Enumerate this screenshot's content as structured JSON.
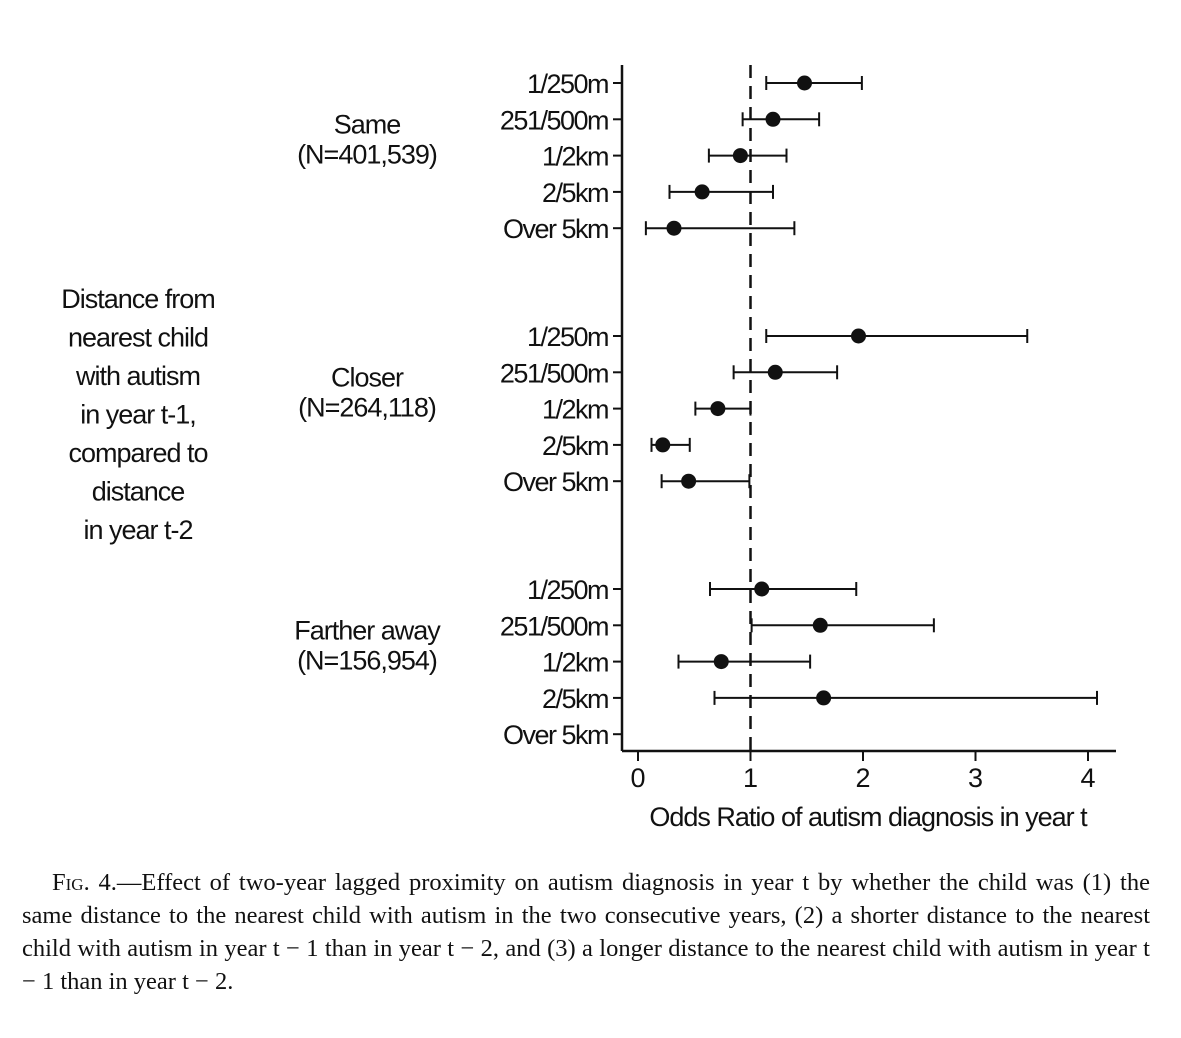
{
  "chart_data": {
    "type": "forest",
    "xlabel": "Odds Ratio of autism diagnosis in year t",
    "xlim": [
      -0.2,
      4.2
    ],
    "xticks": [
      0,
      1,
      2,
      3,
      4
    ],
    "reference_line": 1,
    "side_label": [
      "Distance from",
      "nearest child",
      "with autism",
      "in year t-1,",
      "compared to",
      "distance",
      "in year t-2"
    ],
    "groups": [
      {
        "name_lines": [
          "Same",
          "(N=401,539)"
        ],
        "rows": [
          {
            "label": "1/250m",
            "or": 1.48,
            "lo": 1.14,
            "hi": 1.99
          },
          {
            "label": "251/500m",
            "or": 1.2,
            "lo": 0.93,
            "hi": 1.61
          },
          {
            "label": "1/2km",
            "or": 0.91,
            "lo": 0.63,
            "hi": 1.32
          },
          {
            "label": "2/5km",
            "or": 0.57,
            "lo": 0.28,
            "hi": 1.2
          },
          {
            "label": "Over 5km",
            "or": 0.32,
            "lo": 0.07,
            "hi": 1.39
          }
        ]
      },
      {
        "name_lines": [
          "Closer",
          "(N=264,118)"
        ],
        "rows": [
          {
            "label": "1/250m",
            "or": 1.96,
            "lo": 1.14,
            "hi": 3.46
          },
          {
            "label": "251/500m",
            "or": 1.22,
            "lo": 0.85,
            "hi": 1.77
          },
          {
            "label": "1/2km",
            "or": 0.71,
            "lo": 0.51,
            "hi": 1.0
          },
          {
            "label": "2/5km",
            "or": 0.22,
            "lo": 0.12,
            "hi": 0.46
          },
          {
            "label": "Over 5km",
            "or": 0.45,
            "lo": 0.21,
            "hi": 0.99
          }
        ]
      },
      {
        "name_lines": [
          "Farther away",
          "(N=156,954)"
        ],
        "rows": [
          {
            "label": "1/250m",
            "or": 1.1,
            "lo": 0.64,
            "hi": 1.94
          },
          {
            "label": "251/500m",
            "or": 1.62,
            "lo": 1.01,
            "hi": 2.63
          },
          {
            "label": "1/2km",
            "or": 0.74,
            "lo": 0.36,
            "hi": 1.53
          },
          {
            "label": "2/5km",
            "or": 1.65,
            "lo": 0.68,
            "hi": 4.08
          },
          {
            "label": "Over 5km",
            "or": null,
            "lo": null,
            "hi": null
          }
        ]
      }
    ]
  },
  "caption": {
    "fig_no": "Fig. 4.",
    "text": "—Effect of two-year lagged proximity on autism diagnosis in year t by whether the child was (1) the same distance to the nearest child with autism in the two consecutive years, (2) a shorter distance to the nearest child with autism in year t − 1 than in year t − 2, and (3) a longer distance to the nearest child with autism in year t − 1 than in year t − 2."
  }
}
